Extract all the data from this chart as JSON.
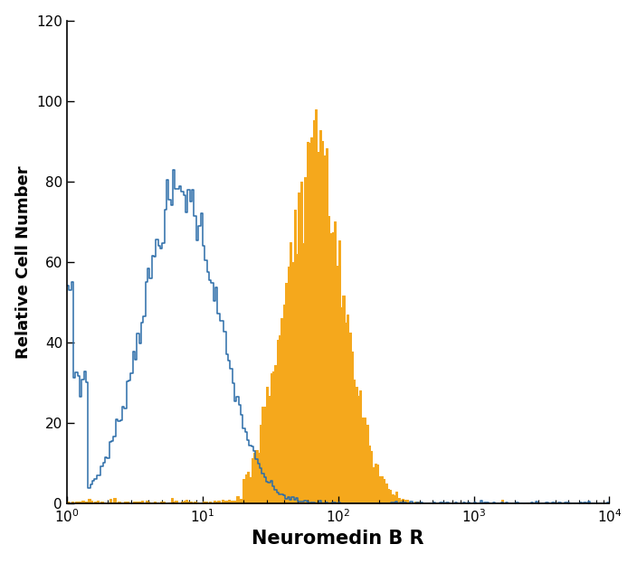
{
  "title": "",
  "xlabel": "Neuromedin B R",
  "ylabel": "Relative Cell Number",
  "ylim": [
    0,
    120
  ],
  "yticks": [
    0,
    20,
    40,
    60,
    80,
    100,
    120
  ],
  "background_color": "#ffffff",
  "blue_color": "#2b6ca8",
  "orange_color": "#f5a81c",
  "orange_fill": "#f5a81c",
  "xlabel_fontsize": 15,
  "ylabel_fontsize": 13,
  "tick_fontsize": 11
}
